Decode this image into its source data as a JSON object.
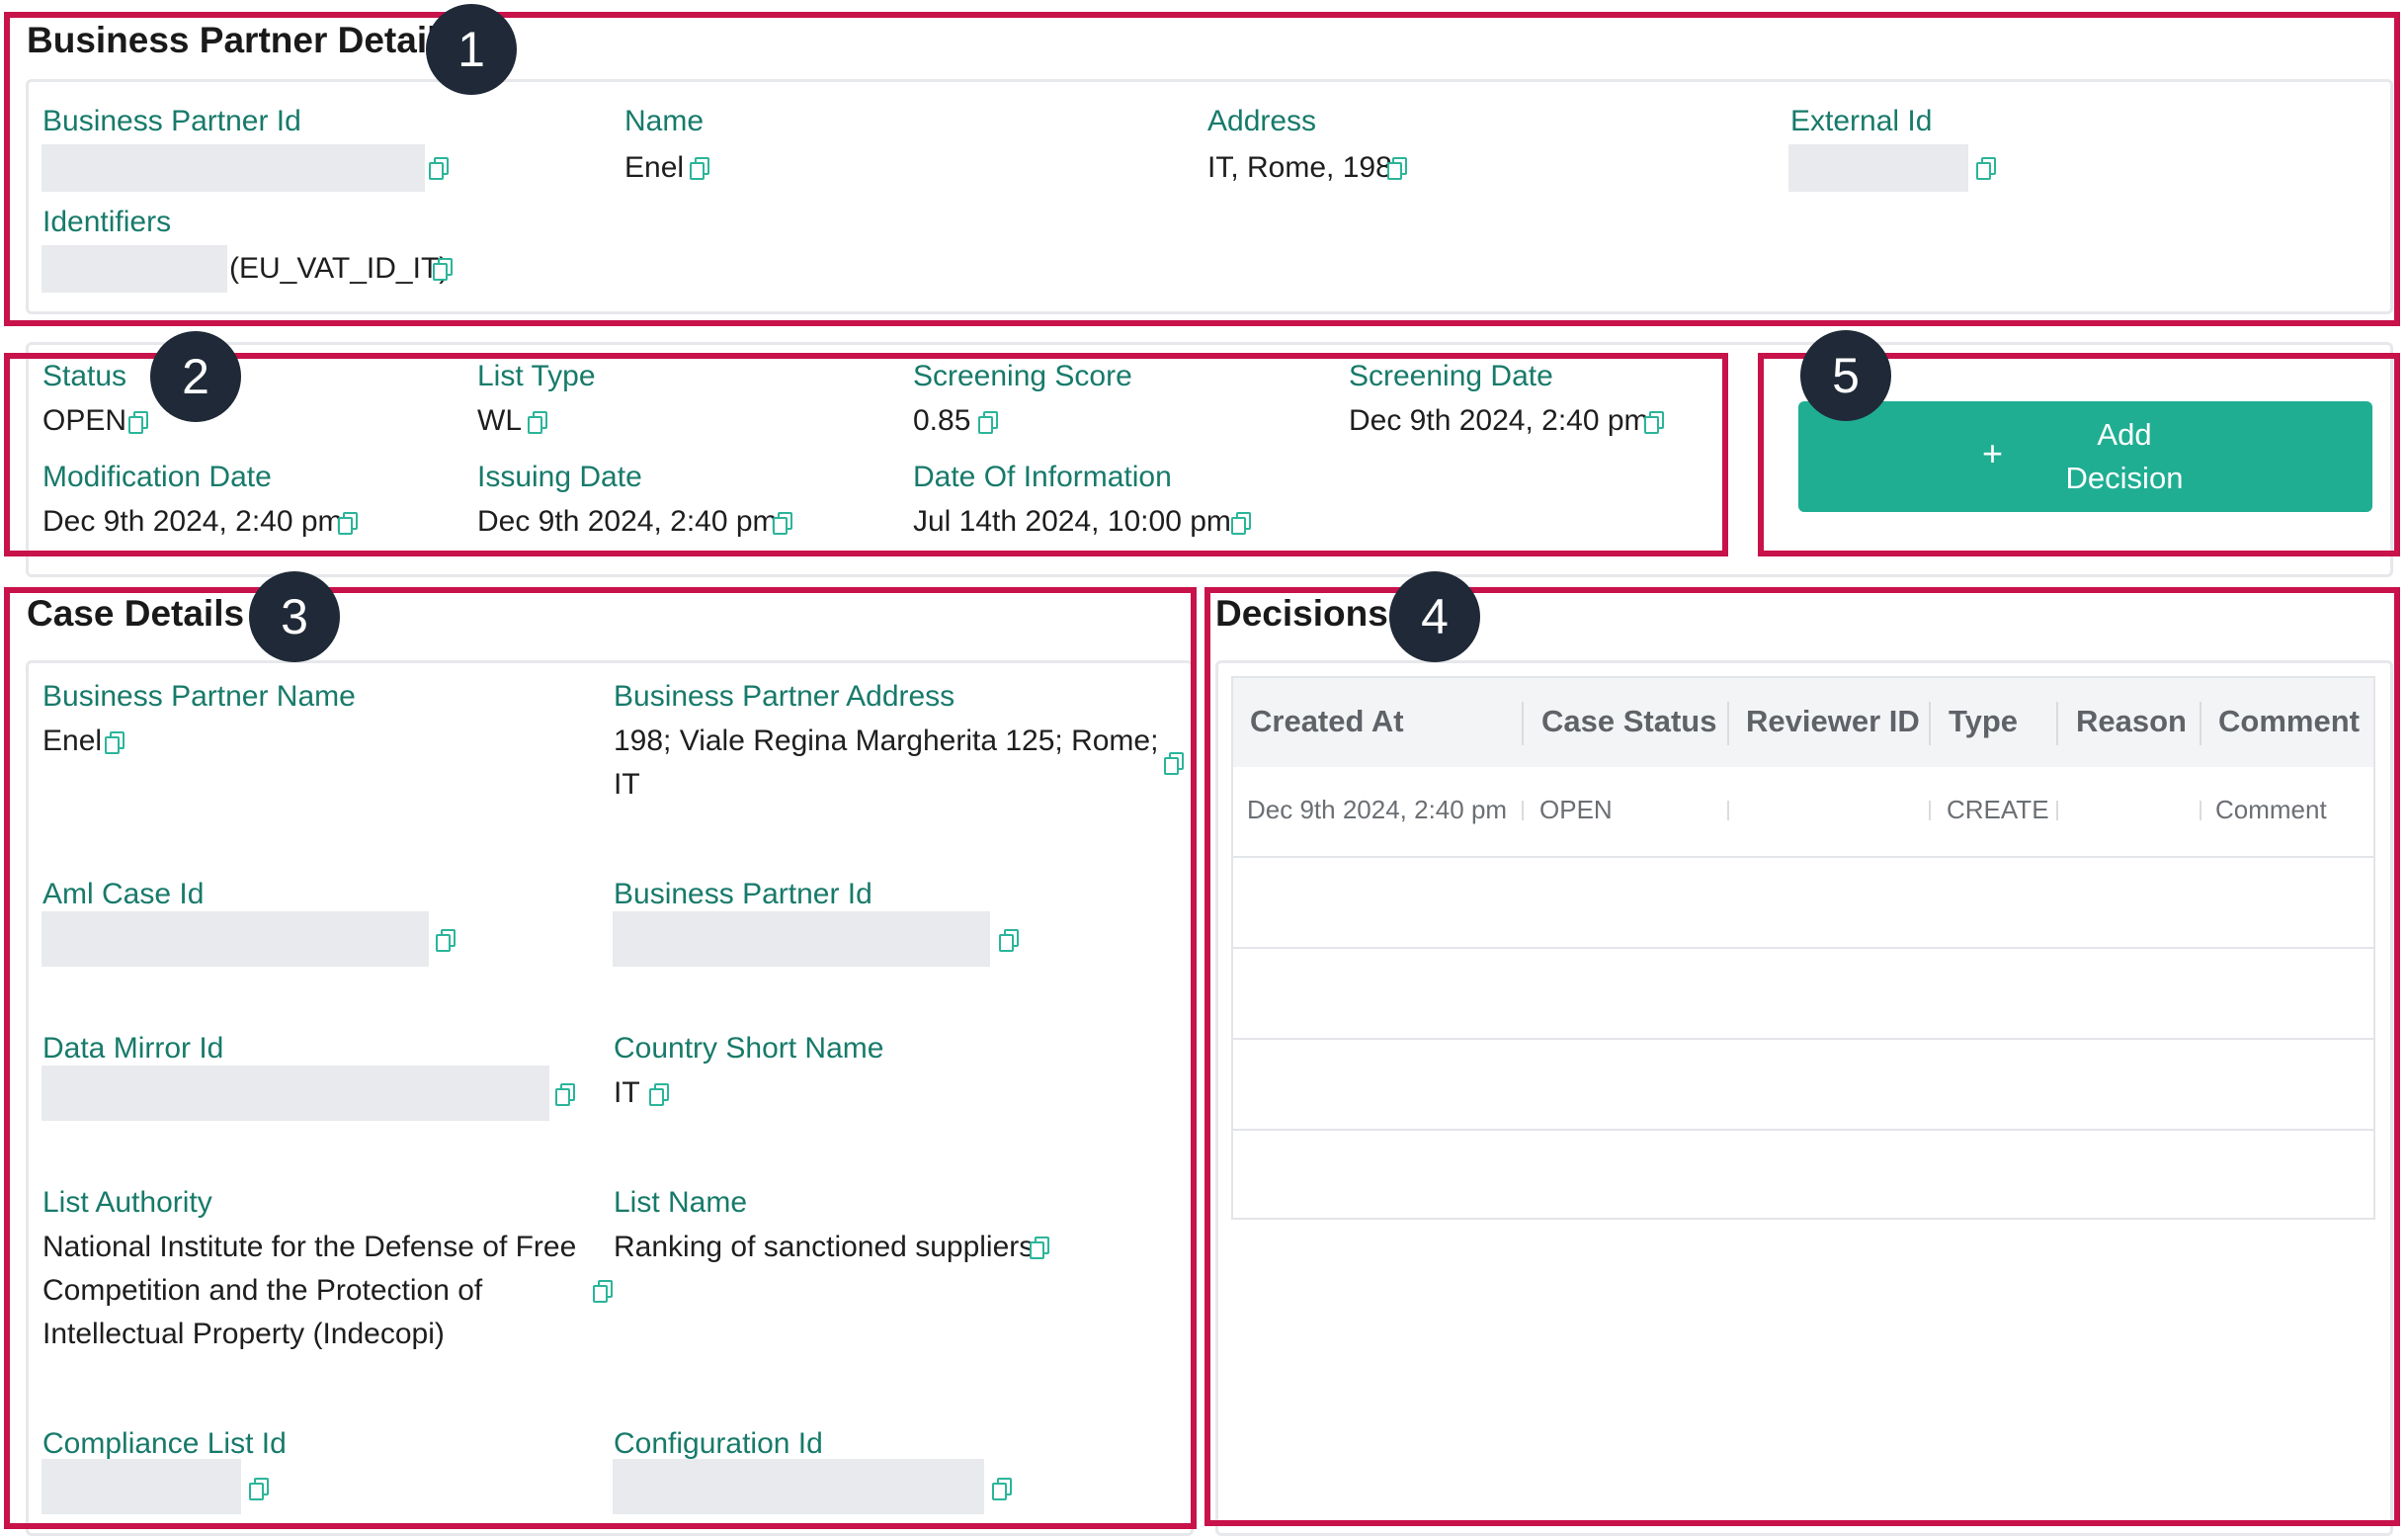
{
  "bp_details": {
    "title": "Business Partner Details",
    "fields": {
      "bp_id_label": "Business Partner Id",
      "name_label": "Name",
      "name_value": "Enel",
      "address_label": "Address",
      "address_value": "IT, Rome, 198",
      "external_id_label": "External Id",
      "identifiers_label": "Identifiers",
      "identifiers_suffix": "(EU_VAT_ID_IT)"
    }
  },
  "screening": {
    "status_label": "Status",
    "status_value": "OPEN",
    "list_type_label": "List Type",
    "list_type_value": "WL",
    "score_label": "Screening Score",
    "score_value": "0.85",
    "date_label": "Screening Date",
    "date_value": "Dec 9th 2024, 2:40 pm",
    "mod_label": "Modification Date",
    "mod_value": "Dec 9th 2024, 2:40 pm",
    "issuing_label": "Issuing Date",
    "issuing_value": "Dec 9th 2024, 2:40 pm",
    "info_label": "Date Of Information",
    "info_value": "Jul 14th 2024, 10:00 pm"
  },
  "add_decision": {
    "icon": "plus-icon",
    "label_line1": "Add",
    "label_line2": "Decision"
  },
  "case_details": {
    "title": "Case Details",
    "bp_name_label": "Business Partner Name",
    "bp_name_value": "Enel",
    "bp_address_label": "Business Partner Address",
    "bp_address_line1": "198; Viale Regina Margherita 125; Rome;",
    "bp_address_line2": "IT",
    "aml_label": "Aml Case Id",
    "bp_id_label": "Business Partner Id",
    "mirror_label": "Data Mirror Id",
    "country_label": "Country Short Name",
    "country_value": "IT",
    "authority_label": "List Authority",
    "authority_line1": "National Institute for the Defense of Free",
    "authority_line2": "Competition and the Protection of",
    "authority_line3": "Intellectual Property (Indecopi)",
    "list_name_label": "List Name",
    "list_name_value": "Ranking of sanctioned suppliers",
    "compliance_label": "Compliance List Id",
    "config_label": "Configuration Id"
  },
  "decisions": {
    "title": "Decisions",
    "columns": [
      "Created At",
      "Case Status",
      "Reviewer ID",
      "Type",
      "Reason",
      "Comment"
    ],
    "rows": [
      [
        "Dec 9th 2024, 2:40 pm",
        "OPEN",
        "",
        "CREATE",
        "",
        "Comment"
      ]
    ]
  },
  "badges": {
    "b1": "1",
    "b2": "2",
    "b3": "3",
    "b4": "4",
    "b5": "5"
  },
  "colors": {
    "accent": "#1fae92",
    "label": "#177a6a",
    "highlight": "#c8124a",
    "badge": "#1f2937"
  }
}
